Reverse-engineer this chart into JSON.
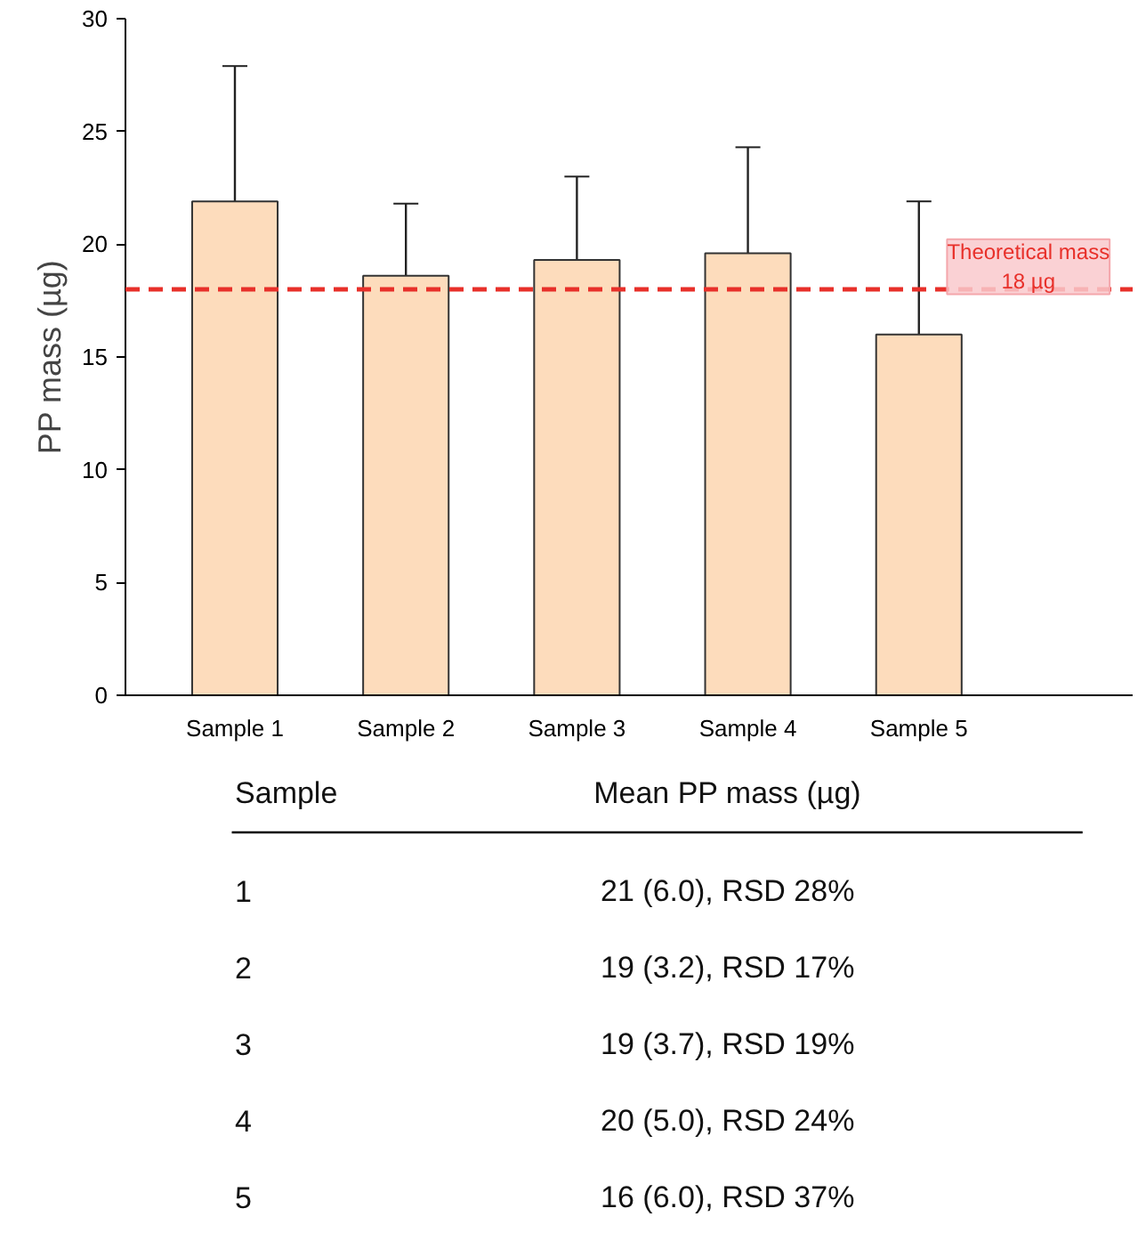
{
  "chart_data": {
    "type": "bar",
    "ylabel": "PP mass (µg)",
    "categories": [
      "Sample 1",
      "Sample 2",
      "Sample 3",
      "Sample 4",
      "Sample 5"
    ],
    "values": [
      21.9,
      18.6,
      19.3,
      19.6,
      16.0
    ],
    "errors": [
      6.0,
      3.2,
      3.7,
      4.7,
      5.9
    ],
    "color": "#fddcbc",
    "ylim": [
      0,
      30
    ],
    "yticks": [
      0,
      5,
      10,
      15,
      20,
      25,
      30
    ],
    "grid": false,
    "ref_lines": [
      {
        "axis": "y",
        "value": 18,
        "label": "Theoretical mass\n18 µg",
        "color": "#e8302a",
        "line_style": "dashed"
      }
    ],
    "annotations": [
      "Sample",
      "Mean PP mass (µg)",
      "1",
      "21 (6.0), RSD 28%",
      "2",
      "19 (3.2), RSD 17%",
      "3",
      "19 (3.7), RSD 19%",
      "4",
      "20 (5.0), RSD 24%",
      "5",
      "16 (6.0), RSD 37%"
    ]
  }
}
